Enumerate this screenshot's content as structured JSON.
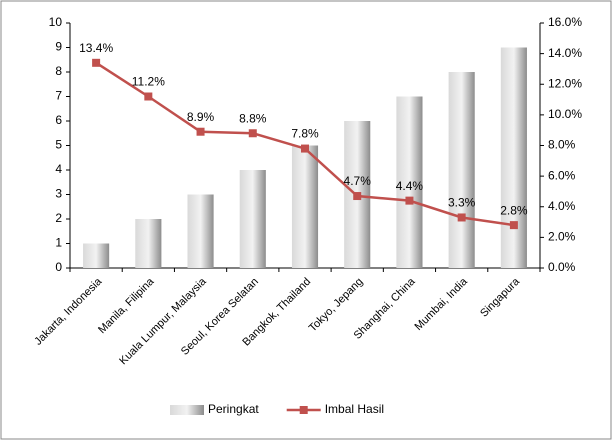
{
  "chart_data": {
    "type": "bar-line",
    "categories": [
      "Jakarta, Indonesia",
      "Manila, Filipina",
      "Kuala Lumpur, Malaysia",
      "Seoul, Korea Selatan",
      "Bangkok, Thailand",
      "Tokyo, Jepang",
      "Shanghai, China",
      "Mumbai, India",
      "Singapura"
    ],
    "series": [
      {
        "name": "Peringkat",
        "type": "bar",
        "color": "#a6a6a6",
        "values": [
          1,
          2,
          3,
          4,
          5,
          6,
          7,
          8,
          9
        ]
      },
      {
        "name": "Imbal Hasil",
        "type": "line",
        "axis": "y2",
        "color": "#c0504d",
        "values": [
          13.4,
          11.2,
          8.9,
          8.8,
          7.8,
          4.7,
          4.4,
          3.3,
          2.8
        ],
        "value_labels": [
          "13.4%",
          "11.2%",
          "8.9%",
          "8.8%",
          "7.8%",
          "4.7%",
          "4.4%",
          "3.3%",
          "2.8%"
        ]
      }
    ],
    "ylim": [
      0,
      10
    ],
    "yticks": [
      0,
      1,
      2,
      3,
      4,
      5,
      6,
      7,
      8,
      9,
      10
    ],
    "y2lim": [
      0,
      16
    ],
    "y2ticks": [
      {
        "value": 0,
        "label": "0.0%"
      },
      {
        "value": 2,
        "label": "2.0%"
      },
      {
        "value": 4,
        "label": "4.0%"
      },
      {
        "value": 6,
        "label": "6.0%"
      },
      {
        "value": 8,
        "label": "8.0%"
      },
      {
        "value": 10,
        "label": "10.0%"
      },
      {
        "value": 12,
        "label": "12.0%"
      },
      {
        "value": 14,
        "label": "14.0%"
      },
      {
        "value": 16,
        "label": "16.0%"
      }
    ],
    "legend": "bottom"
  }
}
